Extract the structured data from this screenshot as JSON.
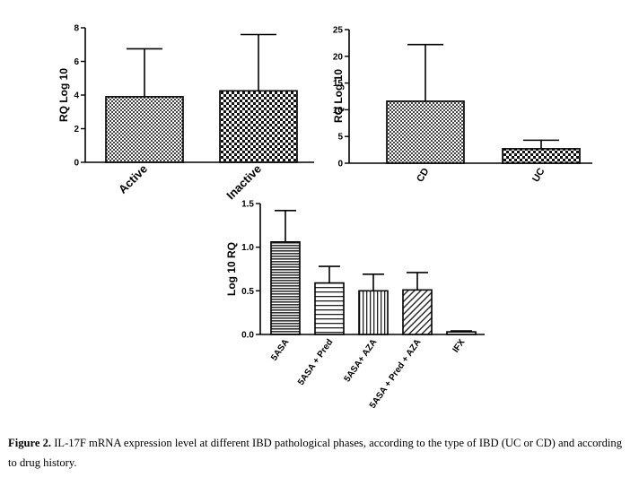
{
  "chart_data": [
    {
      "type": "bar",
      "categories": [
        "Active",
        "Inactive"
      ],
      "series": [
        {
          "values": [
            3.9,
            4.25
          ],
          "error_upper": [
            6.75,
            7.6
          ]
        }
      ],
      "title": "",
      "xlabel": "",
      "ylabel": "RQ Log 10",
      "ylim": [
        0,
        8
      ],
      "yticks": [
        "0",
        "2",
        "4",
        "6",
        "8"
      ],
      "grid": false,
      "patterns": [
        "fine-check",
        "coarse-check"
      ]
    },
    {
      "type": "bar",
      "categories": [
        "CD",
        "UC"
      ],
      "series": [
        {
          "values": [
            11.6,
            2.7
          ],
          "error_upper": [
            22.2,
            4.3
          ]
        }
      ],
      "title": "",
      "xlabel": "",
      "ylabel": "RQ Log 10",
      "ylim": [
        0,
        25
      ],
      "yticks": [
        "0",
        "5",
        "10",
        "15",
        "20",
        "25"
      ],
      "grid": false,
      "patterns": [
        "fine-check",
        "coarse-check"
      ]
    },
    {
      "type": "bar",
      "categories": [
        "5ASA",
        "5ASA + Pred",
        "5ASA+ AZA",
        "5ASA + Pred + AZA",
        "IFX"
      ],
      "series": [
        {
          "values": [
            1.06,
            0.59,
            0.5,
            0.51,
            0.03
          ],
          "error_upper": [
            1.42,
            0.78,
            0.69,
            0.71,
            0.04
          ]
        }
      ],
      "title": "",
      "xlabel": "",
      "ylabel": "Log 10 RQ",
      "ylim": [
        0,
        1.5
      ],
      "yticks": [
        "0.0",
        "0.5",
        "1.0",
        "1.5"
      ],
      "grid": false,
      "patterns": [
        "horizontal-lines-dense",
        "horizontal-lines",
        "vertical-lines",
        "diagonal-lines",
        "blank"
      ]
    }
  ],
  "caption": {
    "label": "Figure 2.",
    "text": " IL-17F mRNA expression level at different IBD pathological phases, according to the type of IBD (UC or CD) and according to drug history."
  }
}
